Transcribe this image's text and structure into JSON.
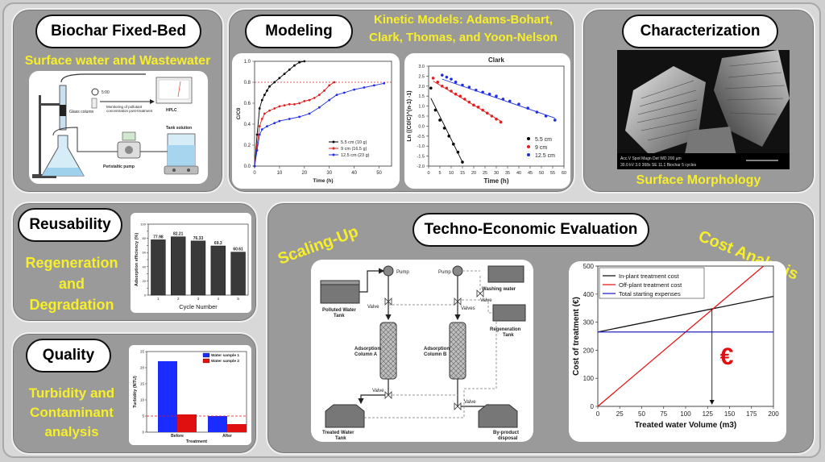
{
  "panels": {
    "fixed_bed": {
      "title": "Biochar Fixed-Bed",
      "subtitle": "Surface water and Wastewater",
      "diagram": {
        "timer": "5:00",
        "column": "Glass column",
        "monitoring": "Monitoring of pollutant concentration post-treatment",
        "hplc": "HPLC",
        "pump": "Peristaltic pump",
        "tank": "Tank solution"
      }
    },
    "modeling": {
      "title": "Modeling",
      "subtitle_line1": "Kinetic Models: Adams-Bohart,",
      "subtitle_line2": "Clark, Thomas, and Yoon-Nelson"
    },
    "characterization": {
      "title": "Characterization",
      "subtitle": "Surface Morphology",
      "sem_bar": "Acc.V  Spot Magn   Det  WD         200 µm",
      "sem_bar2": "30.0 kV 3.0   368x    SE  11.1  Biochar 5 cycles"
    },
    "reusability": {
      "title": "Reusability",
      "line1": "Regeneration",
      "line2": "and",
      "line3": "Degradation"
    },
    "quality": {
      "title": "Quality",
      "line1": "Turbidity and",
      "line2": "Contaminant",
      "line3": "analysis"
    },
    "techno": {
      "title": "Techno-Economic Evaluation",
      "scaling": "Scaling-Up",
      "cost": "Cost Analysis",
      "euro": "€"
    }
  },
  "process": {
    "pump1": "Pump",
    "pump2": "Pump",
    "washing": "Washing water",
    "polluted": "Polluted Water Tank",
    "valve1": "Valve",
    "valves": "Valves",
    "valve3": "Valve",
    "valve4": "Valve",
    "valve5": "Valve",
    "regen": "Regeneration Tank",
    "colA": "Adsorption Column A",
    "colB": "Adsorption Column B",
    "treated": "Treated Water Tank",
    "byproduct": "By-product disposal"
  },
  "chart_data": [
    {
      "type": "line",
      "id": "breakthrough",
      "xlabel": "Time (h)",
      "ylabel": "C/C0",
      "xlim": [
        0,
        55
      ],
      "ylim": [
        0,
        1.0
      ],
      "xticks": [
        0,
        10,
        20,
        30,
        40,
        50
      ],
      "yticks": [
        0,
        0.2,
        0.4,
        0.6,
        0.8,
        1.0
      ],
      "ytick_labels": [
        "0.0",
        "0.2",
        "0.4",
        "0.6",
        "0.8",
        "1.0"
      ],
      "reference_y": 0.8,
      "legend_position": "bottom-right",
      "series": [
        {
          "name": "5.5 cm (10 g)",
          "color": "#000000",
          "x": [
            0,
            1,
            2,
            3,
            4,
            5,
            6,
            8,
            10,
            12,
            14,
            16,
            18,
            20
          ],
          "y": [
            0,
            0.3,
            0.55,
            0.63,
            0.68,
            0.72,
            0.76,
            0.8,
            0.84,
            0.88,
            0.92,
            0.96,
            0.99,
            1.0
          ]
        },
        {
          "name": "9 cm (16.5 g)",
          "color": "#e02020",
          "x": [
            0,
            1,
            2,
            3,
            4,
            6,
            8,
            10,
            12,
            14,
            16,
            18,
            20,
            22,
            24,
            26,
            28,
            30,
            32
          ],
          "y": [
            0,
            0.2,
            0.38,
            0.45,
            0.5,
            0.53,
            0.55,
            0.57,
            0.58,
            0.59,
            0.59,
            0.6,
            0.62,
            0.63,
            0.65,
            0.68,
            0.72,
            0.77,
            0.8
          ]
        },
        {
          "name": "12.5 cm (23 g)",
          "color": "#2030e0",
          "x": [
            0,
            1,
            2,
            3,
            5,
            8,
            10,
            14,
            18,
            22,
            26,
            30,
            33,
            36,
            40,
            44,
            48,
            52
          ],
          "y": [
            0,
            0.15,
            0.3,
            0.35,
            0.38,
            0.41,
            0.43,
            0.45,
            0.47,
            0.5,
            0.56,
            0.63,
            0.68,
            0.7,
            0.73,
            0.75,
            0.77,
            0.79
          ]
        }
      ]
    },
    {
      "type": "scatter",
      "id": "clark",
      "title": "Clark",
      "xlabel": "Time (h)",
      "ylabel": "Ln ((C0/C)^(n-1) -1)",
      "xlim": [
        0,
        60
      ],
      "ylim": [
        -2.0,
        3.0
      ],
      "xticks": [
        0,
        5,
        10,
        15,
        20,
        25,
        30,
        35,
        40,
        45,
        50,
        55,
        60
      ],
      "yticks": [
        -2.0,
        -1.5,
        -1.0,
        -0.5,
        0.0,
        0.5,
        1.0,
        1.5,
        2.0,
        2.5,
        3.0
      ],
      "ytick_labels": [
        "-2.0",
        "-1.5",
        "-1.0",
        "-0.5",
        "0.0",
        "0.5",
        "1.0",
        "1.5",
        "2.0",
        "2.5",
        "3.0"
      ],
      "legend_position": "bottom-right",
      "series": [
        {
          "name": "5.5 cm",
          "color": "#000000",
          "x": [
            1,
            3,
            5,
            7,
            9,
            11,
            13,
            15
          ],
          "y": [
            1.9,
            0.8,
            0.3,
            -0.1,
            -0.5,
            -0.9,
            -1.3,
            -1.8
          ],
          "fit": [
            [
              1,
              1.4
            ],
            [
              15,
              -1.8
            ]
          ]
        },
        {
          "name": "9 cm",
          "color": "#e02020",
          "x": [
            2,
            4,
            6,
            8,
            10,
            12,
            14,
            16,
            18,
            20,
            22,
            24,
            26,
            28,
            30,
            32
          ],
          "y": [
            2.4,
            2.2,
            2.0,
            1.9,
            1.75,
            1.6,
            1.5,
            1.35,
            1.2,
            1.05,
            0.95,
            0.8,
            0.65,
            0.5,
            0.35,
            0.2
          ],
          "fit": [
            [
              2,
              2.25
            ],
            [
              32,
              0.25
            ]
          ]
        },
        {
          "name": "12.5 cm",
          "color": "#2030e0",
          "x": [
            6,
            8,
            10,
            12,
            15,
            18,
            21,
            24,
            27,
            30,
            33,
            36,
            40,
            44,
            48,
            52,
            56
          ],
          "y": [
            2.55,
            2.45,
            2.35,
            2.2,
            2.05,
            1.95,
            1.8,
            1.7,
            1.6,
            1.5,
            1.35,
            1.25,
            1.1,
            0.9,
            0.7,
            0.5,
            0.3
          ],
          "fit": [
            [
              6,
              2.35
            ],
            [
              56,
              0.4
            ]
          ]
        }
      ]
    },
    {
      "type": "bar",
      "id": "reusability",
      "xlabel": "Cycle Number",
      "ylabel": "Adsorption efficiency (%)",
      "categories": [
        "1",
        "2",
        "3",
        "4",
        "5"
      ],
      "values": [
        77.98,
        82.21,
        76.33,
        69.3,
        60.61
      ],
      "value_labels": [
        "77.98",
        "82.21",
        "76.33",
        "69.3",
        "60.61"
      ],
      "ylim": [
        0,
        100
      ],
      "yticks": [
        0,
        10,
        20,
        30,
        40,
        50,
        60,
        70,
        80,
        90,
        100
      ]
    },
    {
      "type": "bar",
      "id": "turbidity",
      "xlabel": "Treatment",
      "ylabel": "Turbidity (NTU)",
      "categories": [
        "Before",
        "After"
      ],
      "series": [
        {
          "name": "Water sample 1",
          "color": "#1a2cff",
          "values": [
            22,
            5
          ]
        },
        {
          "name": "Water sample 2",
          "color": "#e01010",
          "values": [
            5.5,
            2.5
          ]
        }
      ],
      "reference_y": 5,
      "ylim": [
        0,
        25
      ],
      "yticks": [
        0,
        5,
        10,
        15,
        20,
        25
      ],
      "legend_position": "top-right"
    },
    {
      "type": "line",
      "id": "cost",
      "xlabel": "Treated water Volume (m3)",
      "ylabel": "Cost of treatment (€)",
      "xlim": [
        0,
        200
      ],
      "ylim": [
        0,
        500
      ],
      "xticks": [
        0,
        25,
        50,
        75,
        100,
        125,
        150,
        175,
        200
      ],
      "yticks": [
        0,
        100,
        200,
        300,
        400,
        500
      ],
      "intersection_x": 130,
      "legend_position": "top-left",
      "series": [
        {
          "name": "In-plant treatment cost",
          "color": "#111111",
          "x": [
            0,
            200
          ],
          "y": [
            265,
            392
          ]
        },
        {
          "name": "Off-plant treatment cost",
          "color": "#e01818",
          "x": [
            0,
            200
          ],
          "y": [
            0,
            530
          ]
        },
        {
          "name": "Total starting expenses",
          "color": "#2222c8",
          "x": [
            0,
            200
          ],
          "y": [
            265,
            265
          ]
        }
      ]
    }
  ]
}
